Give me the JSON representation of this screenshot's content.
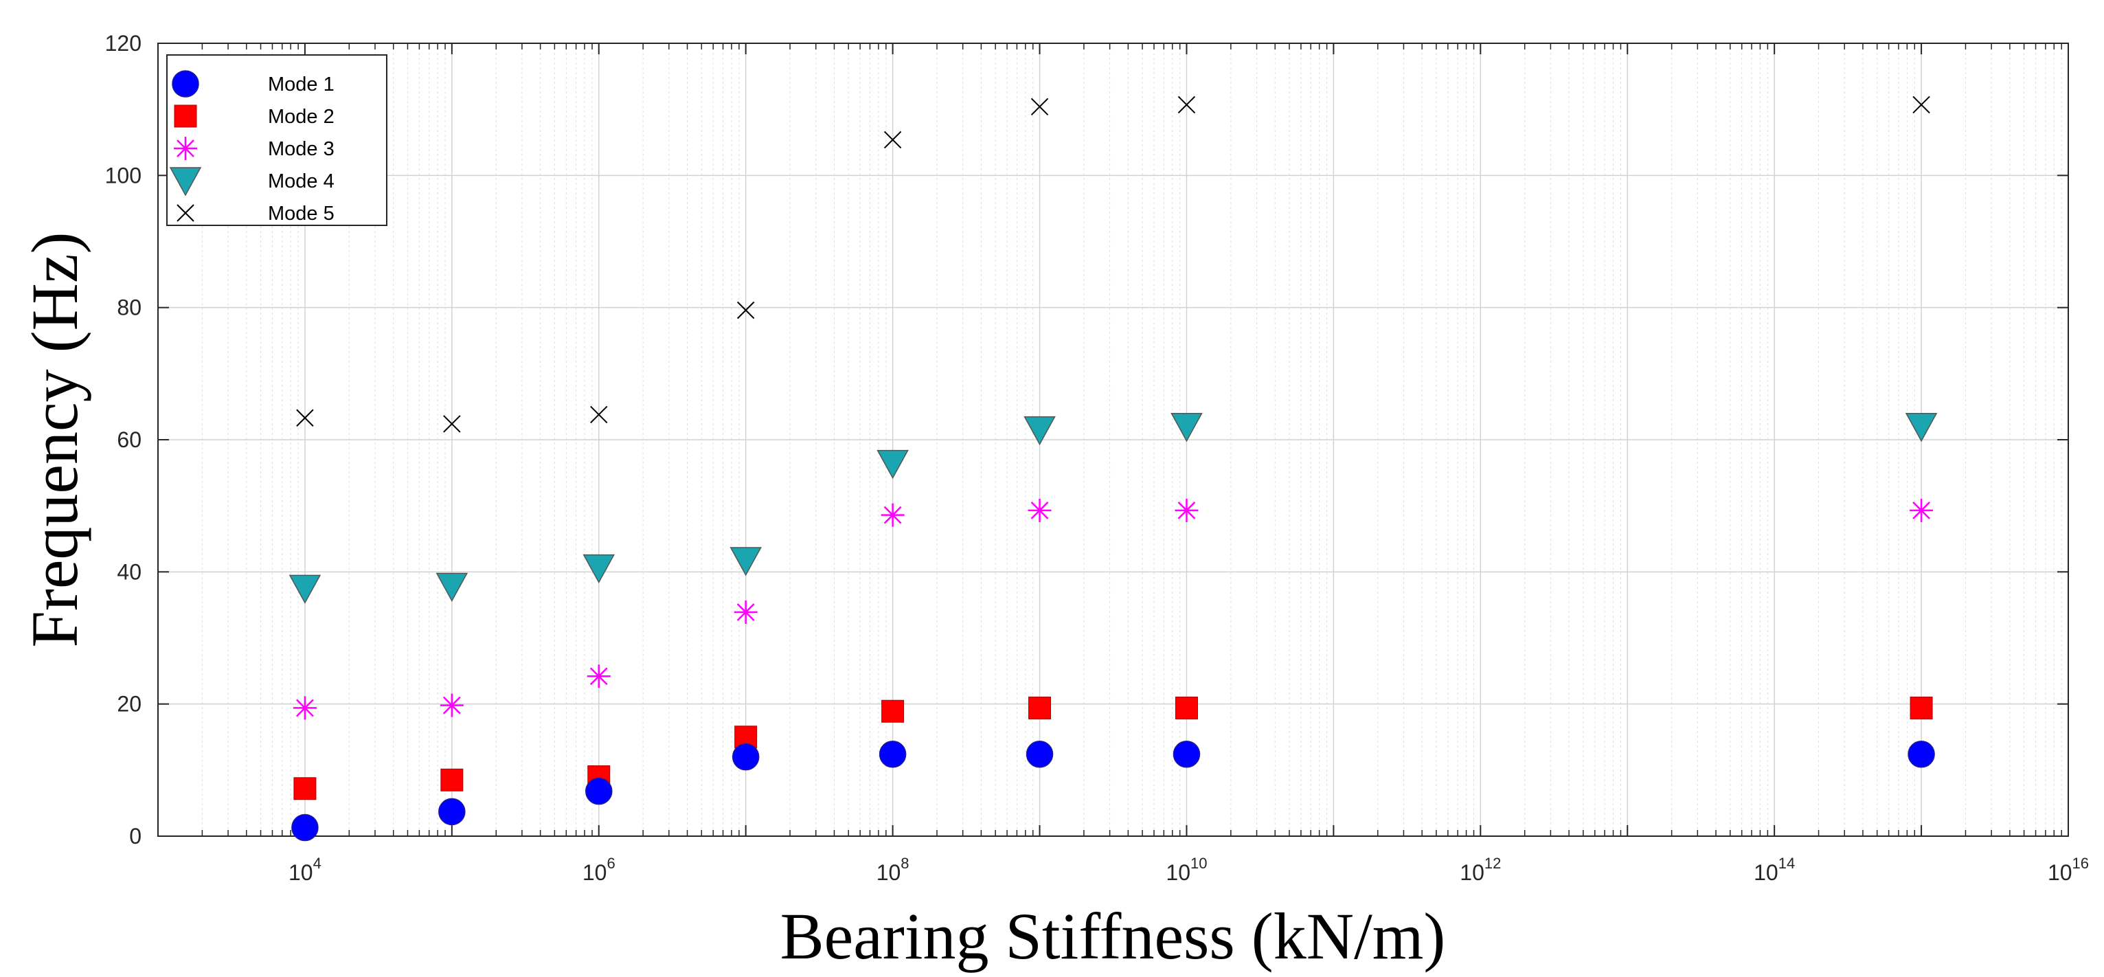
{
  "chart_data": {
    "type": "scatter",
    "title": "",
    "xlabel": "Bearing Stiffness (kN/m)",
    "ylabel": "Frequency (Hz)",
    "x_scale": "log",
    "xlim": [
      1000,
      10000000000000000
    ],
    "ylim": [
      0,
      120
    ],
    "x_ticks": [
      {
        "base": "10",
        "exp": "4"
      },
      {
        "base": "10",
        "exp": "6"
      },
      {
        "base": "10",
        "exp": "8"
      },
      {
        "base": "10",
        "exp": "10"
      },
      {
        "base": "10",
        "exp": "12"
      },
      {
        "base": "10",
        "exp": "14"
      },
      {
        "base": "10",
        "exp": "16"
      }
    ],
    "y_ticks": [
      "0",
      "20",
      "40",
      "60",
      "80",
      "100",
      "120"
    ],
    "grid": true,
    "legend_position": "top-left",
    "x": [
      10000,
      100000,
      1000000,
      10000000,
      100000000,
      1000000000,
      10000000000,
      1000000000000000
    ],
    "series": [
      {
        "name": "Mode 1",
        "marker": "circle",
        "color": "#0000FF",
        "values": [
          1.3,
          3.7,
          6.8,
          12.0,
          12.4,
          12.4,
          12.4,
          12.4
        ]
      },
      {
        "name": "Mode 2",
        "marker": "square",
        "color": "#FF0000",
        "values": [
          7.2,
          8.5,
          9.0,
          15.0,
          18.9,
          19.4,
          19.4,
          19.4
        ]
      },
      {
        "name": "Mode 3",
        "marker": "asterisk",
        "color": "#FF00FF",
        "values": [
          19.4,
          19.8,
          24.2,
          33.9,
          48.6,
          49.3,
          49.3,
          49.3
        ]
      },
      {
        "name": "Mode 4",
        "marker": "triangle-down",
        "color": "#1AA5B0",
        "values": [
          37.5,
          37.8,
          40.6,
          41.7,
          56.4,
          61.5,
          62.0,
          62.0
        ]
      },
      {
        "name": "Mode 5",
        "marker": "x",
        "color": "#000000",
        "values": [
          63.3,
          62.4,
          63.8,
          79.6,
          105.4,
          110.4,
          110.7,
          110.7
        ]
      }
    ]
  }
}
